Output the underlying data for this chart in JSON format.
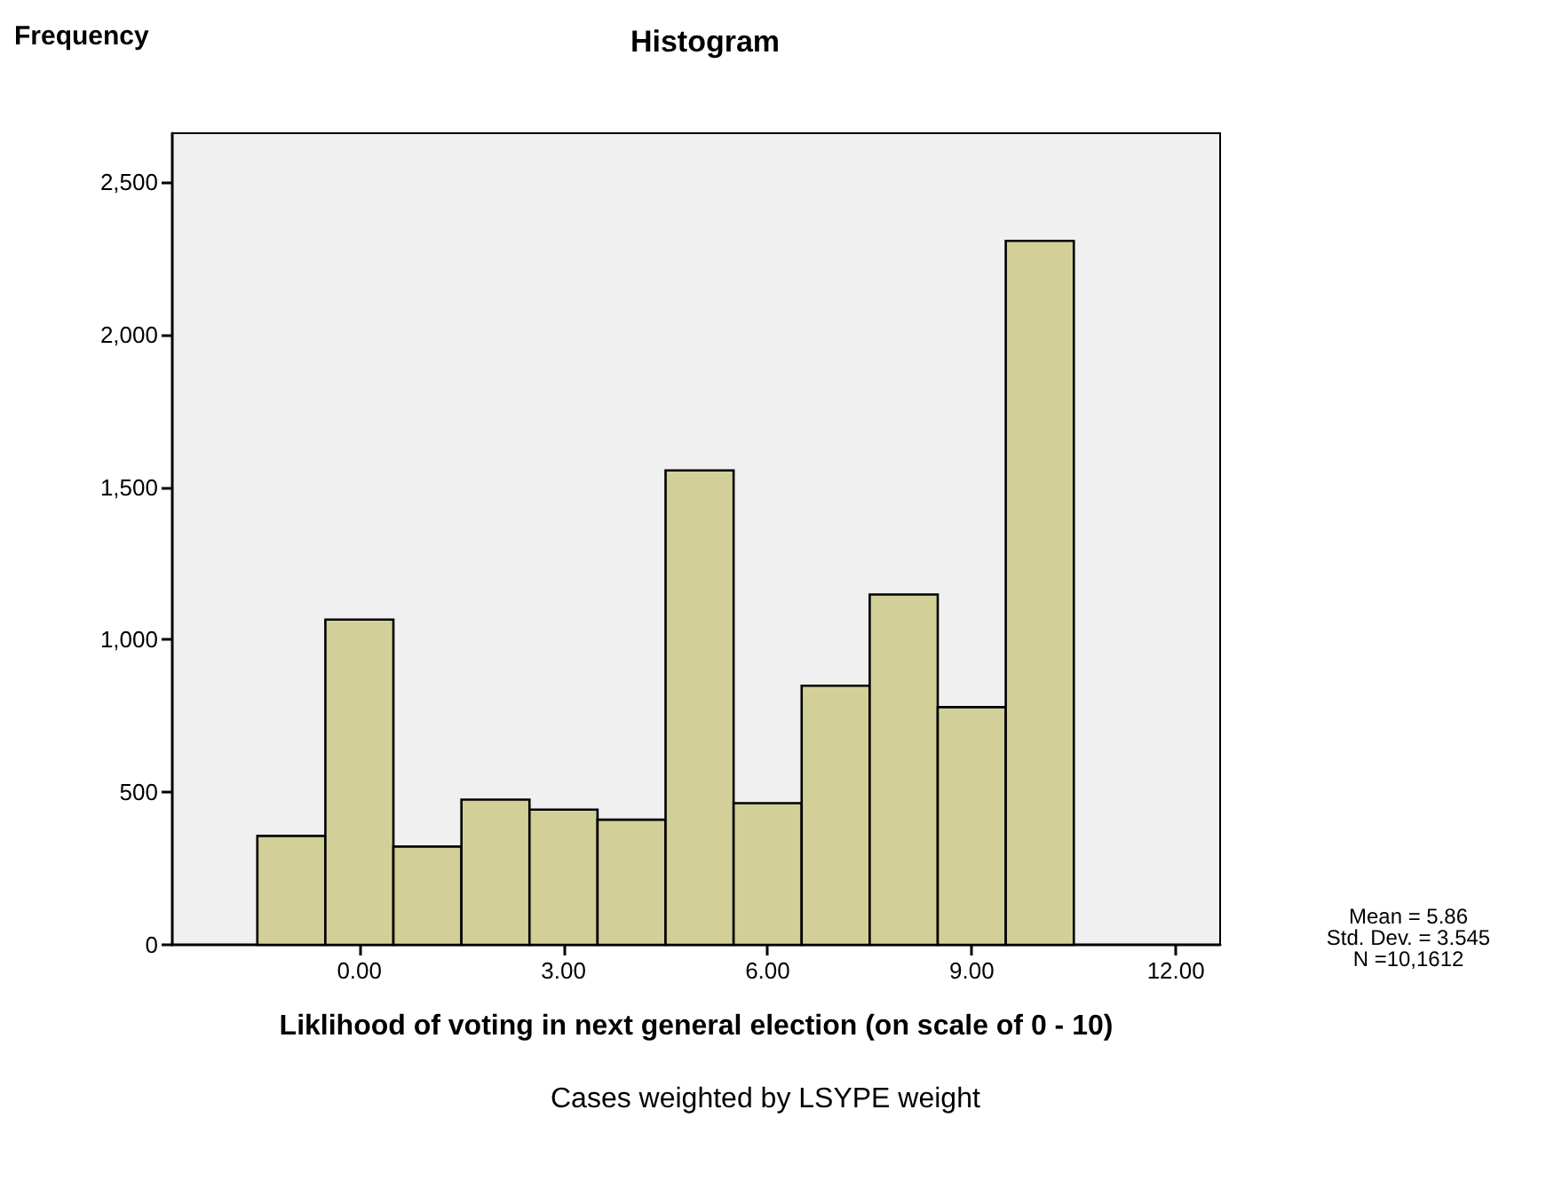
{
  "chart_data": {
    "type": "histogram",
    "title": "Histogram",
    "ylabel": "Frequency",
    "xlabel": "Liklihood of voting in next general election (on scale of 0 - 10)",
    "bins": [
      -1.5,
      -0.5,
      0.5,
      1.5,
      2.5,
      3.5,
      4.5,
      5.5,
      6.5,
      7.5,
      8.5,
      9.5,
      10.5
    ],
    "values": [
      357,
      1066,
      322,
      476,
      443,
      410,
      1555,
      464,
      849,
      1148,
      779,
      2307
    ],
    "color": "#d3cf98",
    "xlim": [
      -2.75,
      12.65
    ],
    "xticks": [
      {
        "value": 0,
        "label": "0.00"
      },
      {
        "value": 3,
        "label": "3.00"
      },
      {
        "value": 6,
        "label": "6.00"
      },
      {
        "value": 9,
        "label": "9.00"
      },
      {
        "value": 12,
        "label": "12.00"
      }
    ],
    "ylim": [
      0,
      2660
    ],
    "yticks": [
      0,
      500,
      {
        "value": 1000,
        "label": "1,000"
      },
      {
        "value": 1500,
        "label": "1,500"
      },
      {
        "value": 2000,
        "label": "2,000"
      },
      {
        "value": 2500,
        "label": "2,500"
      }
    ],
    "grid": false,
    "annotations": [
      "Mean = 5.86",
      "Std. Dev. = 3.545",
      "N =10,1612",
      "Cases weighted by LSYPE weight"
    ]
  }
}
